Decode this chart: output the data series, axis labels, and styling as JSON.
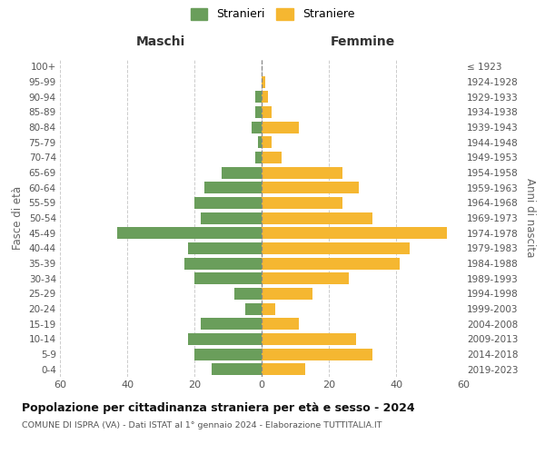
{
  "age_groups_display": [
    "0-4",
    "5-9",
    "10-14",
    "15-19",
    "20-24",
    "25-29",
    "30-34",
    "35-39",
    "40-44",
    "45-49",
    "50-54",
    "55-59",
    "60-64",
    "65-69",
    "70-74",
    "75-79",
    "80-84",
    "85-89",
    "90-94",
    "95-99",
    "100+"
  ],
  "birth_years_display": [
    "2019-2023",
    "2014-2018",
    "2009-2013",
    "2004-2008",
    "1999-2003",
    "1994-1998",
    "1989-1993",
    "1984-1988",
    "1979-1983",
    "1974-1978",
    "1969-1973",
    "1964-1968",
    "1959-1963",
    "1954-1958",
    "1949-1953",
    "1944-1948",
    "1939-1943",
    "1934-1938",
    "1929-1933",
    "1924-1928",
    "≤ 1923"
  ],
  "maschi_display": [
    15,
    20,
    22,
    18,
    5,
    8,
    20,
    23,
    22,
    43,
    18,
    20,
    17,
    12,
    2,
    1,
    3,
    2,
    2,
    0,
    0
  ],
  "femmine_display": [
    13,
    33,
    28,
    11,
    4,
    15,
    26,
    41,
    44,
    55,
    33,
    24,
    29,
    24,
    6,
    3,
    11,
    3,
    2,
    1,
    0
  ],
  "maschi_color": "#6a9e5b",
  "femmine_color": "#f5b731",
  "title": "Popolazione per cittadinanza straniera per età e sesso - 2024",
  "subtitle": "COMUNE DI ISPRA (VA) - Dati ISTAT al 1° gennaio 2024 - Elaborazione TUTTITALIA.IT",
  "xlabel_left": "Maschi",
  "xlabel_right": "Femmine",
  "ylabel_left": "Fasce di età",
  "ylabel_right": "Anni di nascita",
  "legend_maschi": "Stranieri",
  "legend_femmine": "Straniere",
  "xlim": 60,
  "background_color": "#ffffff",
  "grid_color": "#cccccc"
}
